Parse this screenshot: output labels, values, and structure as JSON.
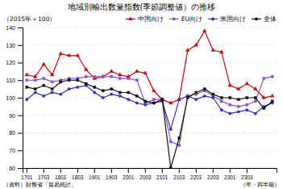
{
  "chart_data": {
    "type": "line",
    "title": "地域別輸出数量指数(季節調整値）の推移",
    "subtitle": "（2015年＝100）",
    "xlabel": "（年・四半期）",
    "annotations": [
      "（資料）財務省「貿易統計」"
    ],
    "categories": [
      "1701",
      null,
      "1703",
      null,
      "1801",
      null,
      "1803",
      null,
      "1901",
      null,
      "1903",
      null,
      "2001",
      null,
      "2003",
      null,
      "2101",
      null,
      "2103",
      null,
      "2201",
      null,
      "2203",
      null,
      "2301",
      null,
      "2303",
      null,
      null,
      null
    ],
    "ylim": [
      60,
      140
    ],
    "yticks": [
      60,
      70,
      80,
      90,
      100,
      110,
      120,
      130,
      140
    ],
    "grid": true,
    "legend": "top",
    "series": [
      {
        "name": "中国向け",
        "color": "#cc0000",
        "marker": "triangle",
        "values": [
          113,
          112,
          119,
          113,
          125,
          124,
          124,
          116,
          111,
          112,
          115,
          113,
          112,
          115,
          114,
          104,
          99,
          97,
          99,
          127,
          130,
          138,
          127,
          126,
          107,
          105,
          108,
          105,
          100,
          101
        ]
      },
      {
        "name": "EU向け",
        "color": "#8855cc",
        "marker": "square",
        "values": [
          110,
          110,
          111,
          109,
          110,
          111,
          111,
          112,
          112,
          112,
          112,
          111,
          111,
          110,
          97,
          99,
          99,
          75,
          73,
          101,
          102,
          104,
          101,
          98,
          96,
          95,
          96,
          98,
          111,
          112
        ]
      },
      {
        "name": "米国向け",
        "color": "#3333aa",
        "marker": "circle",
        "values": [
          99,
          103,
          101,
          103,
          102,
          105,
          106,
          107,
          103,
          100,
          102,
          101,
          99,
          97,
          96,
          97,
          98,
          82,
          99,
          101,
          99,
          101,
          100,
          93,
          91,
          92,
          93,
          91,
          95,
          97
        ]
      },
      {
        "name": "全体",
        "color": "#111111",
        "marker": "square",
        "values": [
          106,
          105,
          107,
          105,
          109,
          110,
          110,
          108,
          106,
          104,
          105,
          103,
          103,
          101,
          98,
          97,
          99,
          60,
          77,
          100,
          103,
          105,
          102,
          100,
          100,
          99,
          100,
          100,
          94,
          98
        ]
      }
    ]
  }
}
